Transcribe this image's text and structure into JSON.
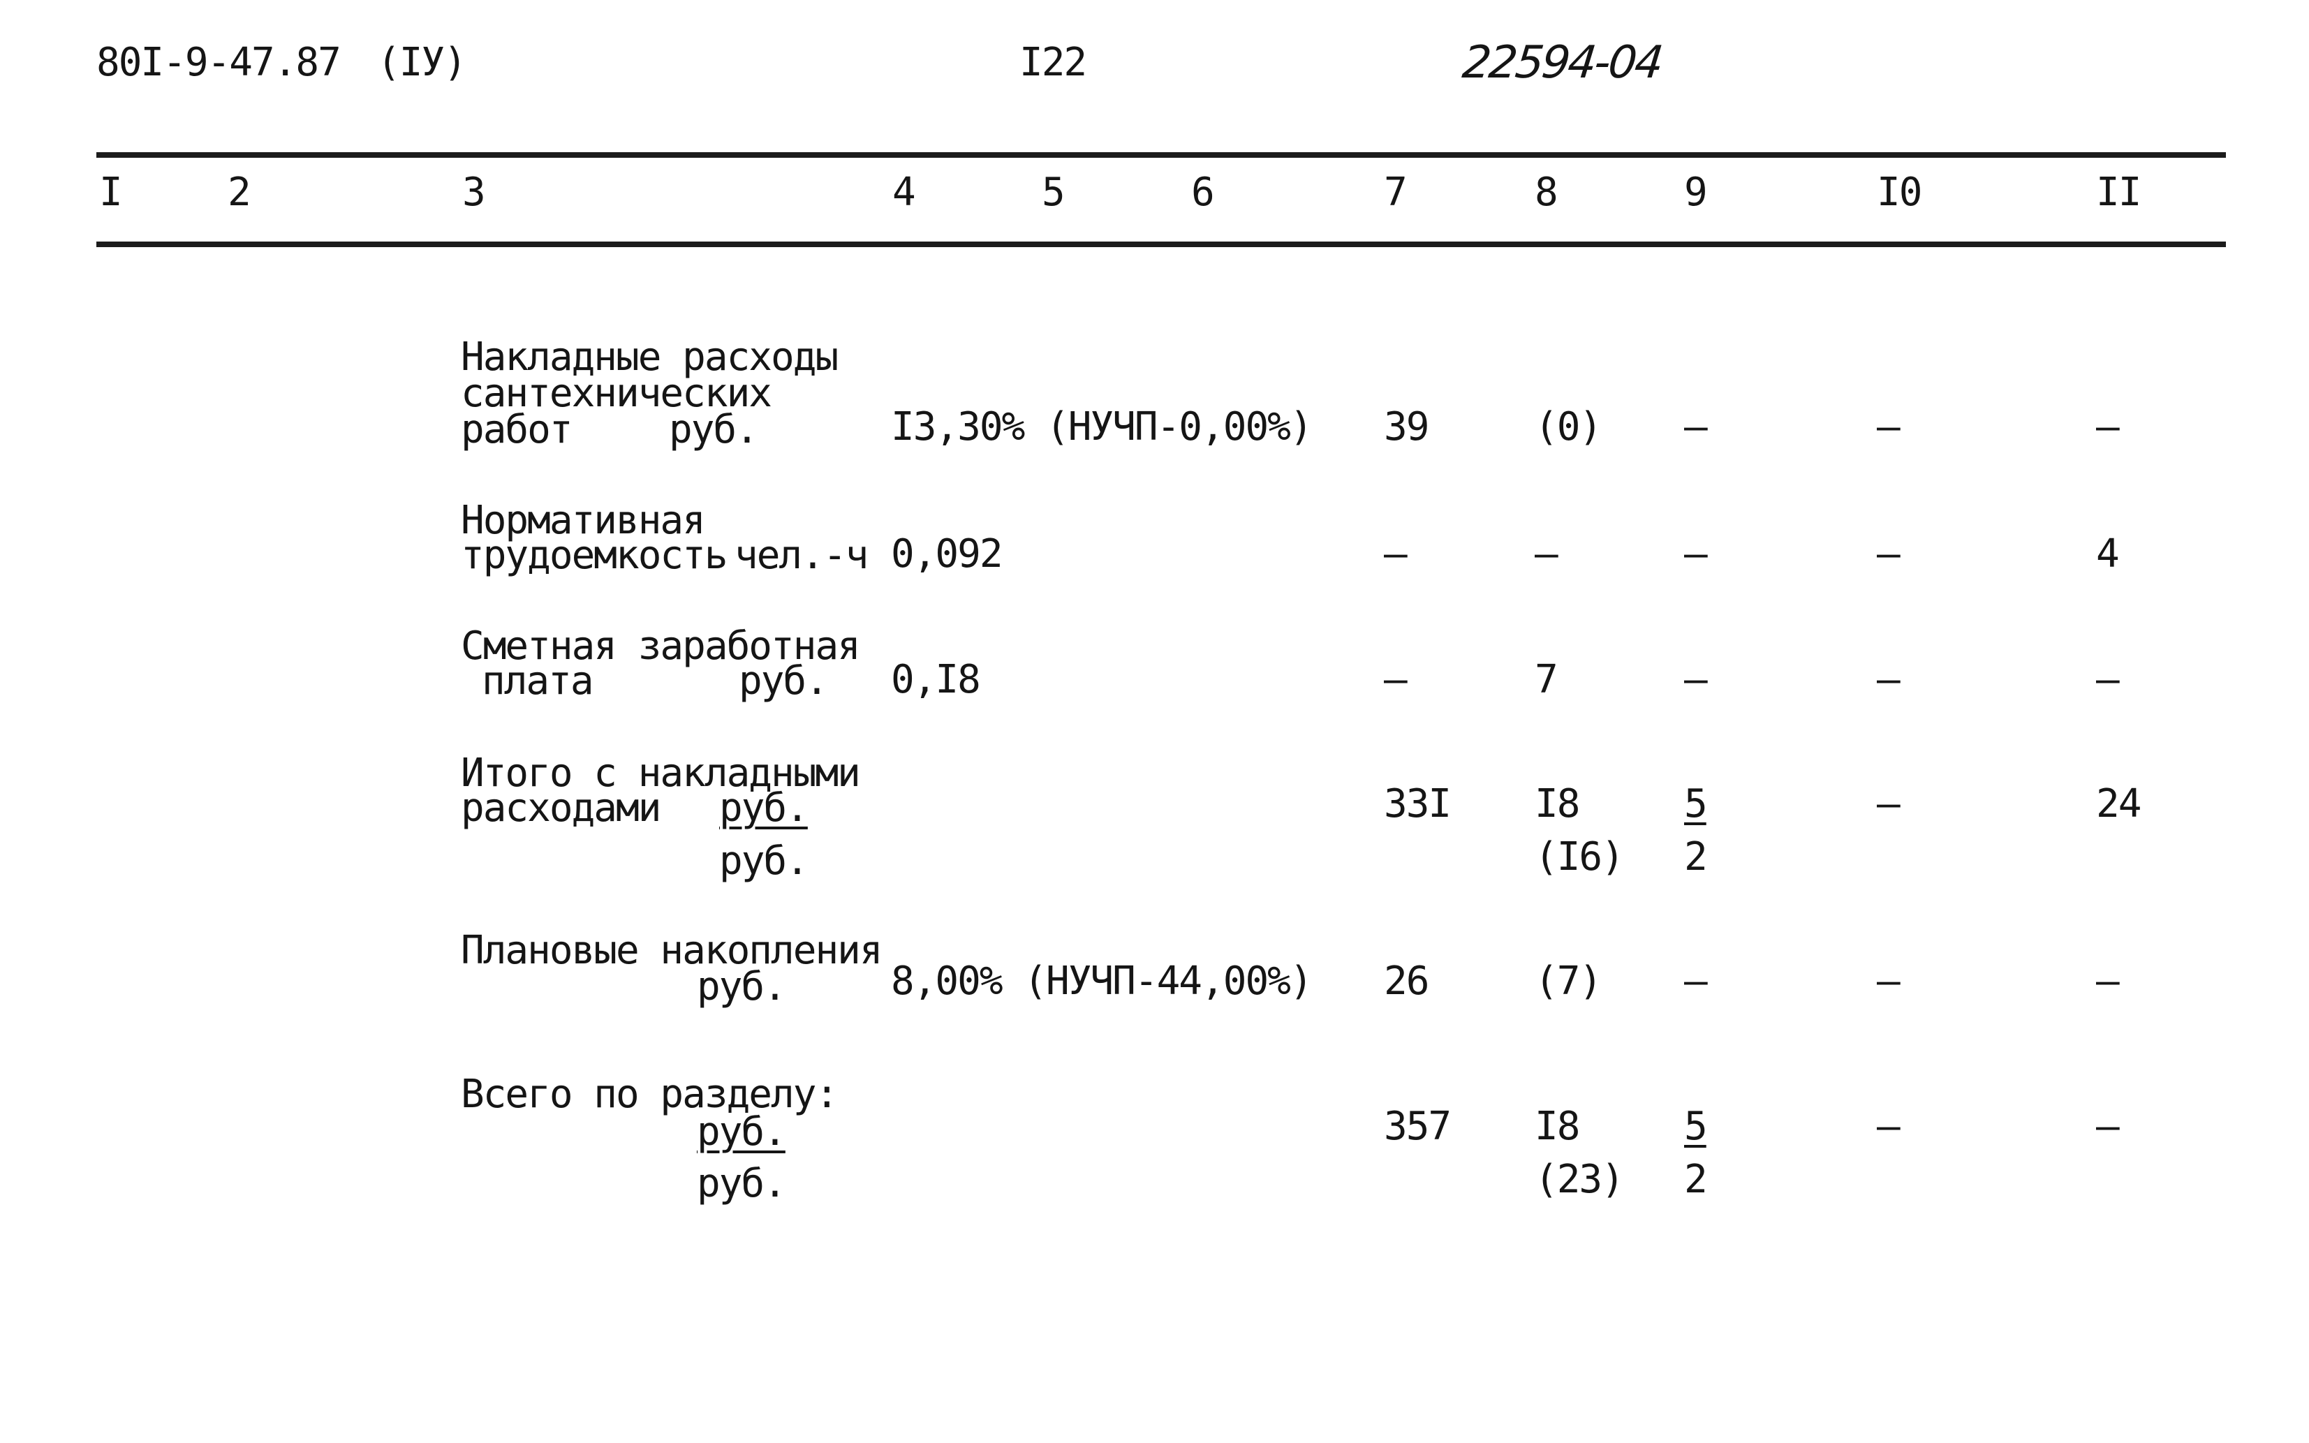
{
  "header": {
    "doc_code": "80I-9-47.87",
    "part": "(IУ)",
    "page_number": "I22",
    "handwritten_number": "22594-04"
  },
  "columns": [
    "I",
    "2",
    "3",
    "4",
    "5",
    "6",
    "7",
    "8",
    "9",
    "I0",
    "II"
  ],
  "rows": [
    {
      "name_lines": [
        "Накладные расходы",
        "сантехнических",
        "работ"
      ],
      "unit": "руб.",
      "rate": "I3,30% (НУЧП-0,00%)",
      "c7": "39",
      "c8": "(0)",
      "c9": "–",
      "c10": "–",
      "c11": "–"
    },
    {
      "name_lines": [
        "Нормативная",
        "трудоемкость"
      ],
      "unit": "чел.-ч",
      "rate": "0,092",
      "c7": "–",
      "c8": "–",
      "c9": "–",
      "c10": "–",
      "c11": "4"
    },
    {
      "name_lines": [
        "Сметная заработная",
        "плата"
      ],
      "unit": "руб.",
      "rate": "0,I8",
      "c7": "–",
      "c8": "7",
      "c9": "–",
      "c10": "–",
      "c11": "–"
    },
    {
      "name_lines": [
        "Итого с накладными",
        "расходами"
      ],
      "unit": "руб.",
      "unit2": "руб.",
      "c7": "33I",
      "c8": "I8",
      "c8b": "(I6)",
      "c9": "5",
      "c9b": "2",
      "c10": "–",
      "c11": "24"
    },
    {
      "name_lines": [
        "Плановые накопления"
      ],
      "unit": "руб.",
      "rate": "8,00% (НУЧП-44,00%)",
      "c7": "26",
      "c8": "(7)",
      "c9": "–",
      "c10": "–",
      "c11": "–"
    },
    {
      "name_lines": [
        "Всего по разделу:"
      ],
      "unit": "руб.",
      "unit2": "руб.",
      "c7": "357",
      "c8": "I8",
      "c8b": "(23)",
      "c9": "5",
      "c9b": "2",
      "c10": "–",
      "c11": "–"
    }
  ]
}
